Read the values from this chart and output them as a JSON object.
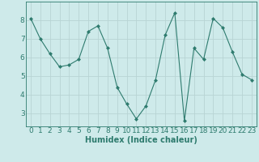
{
  "x": [
    0,
    1,
    2,
    3,
    4,
    5,
    6,
    7,
    8,
    9,
    10,
    11,
    12,
    13,
    14,
    15,
    16,
    17,
    18,
    19,
    20,
    21,
    22,
    23
  ],
  "y": [
    8.1,
    7.0,
    6.2,
    5.5,
    5.6,
    5.9,
    7.4,
    7.7,
    6.5,
    4.4,
    3.5,
    2.7,
    3.4,
    4.8,
    7.2,
    8.4,
    2.6,
    6.5,
    5.9,
    8.1,
    7.6,
    6.3,
    5.1,
    4.8
  ],
  "xlabel": "Humidex (Indice chaleur)",
  "xlim": [
    -0.5,
    23.5
  ],
  "ylim": [
    2.3,
    9.0
  ],
  "yticks": [
    3,
    4,
    5,
    6,
    7,
    8
  ],
  "xticks": [
    0,
    1,
    2,
    3,
    4,
    5,
    6,
    7,
    8,
    9,
    10,
    11,
    12,
    13,
    14,
    15,
    16,
    17,
    18,
    19,
    20,
    21,
    22,
    23
  ],
  "line_color": "#2e7b6e",
  "marker": "D",
  "marker_size": 2.0,
  "bg_color": "#ceeaea",
  "grid_color": "#b8d4d4",
  "label_color": "#2e7b6e",
  "xlabel_fontsize": 7,
  "tick_fontsize": 6.5
}
